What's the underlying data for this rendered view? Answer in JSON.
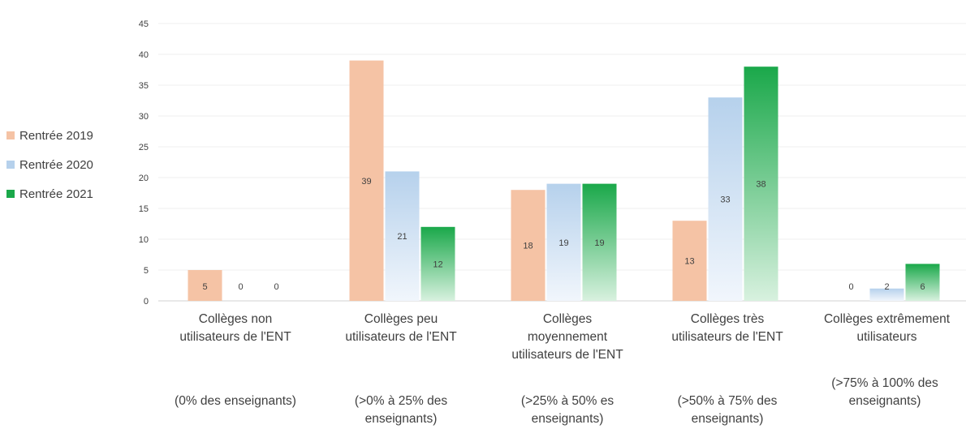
{
  "chart_data": {
    "type": "bar",
    "title": "",
    "xlabel": "",
    "ylabel": "",
    "ylim": [
      0,
      45
    ],
    "yticks": [
      0,
      5,
      10,
      15,
      20,
      25,
      30,
      35,
      40,
      45
    ],
    "grid": true,
    "legend_position": "left",
    "categories": [
      {
        "line1": "Collèges non",
        "line2": "utilisateurs de l'ENT",
        "line3": "",
        "sub1": "(0% des enseignants)",
        "sub2": ""
      },
      {
        "line1": "Collèges peu",
        "line2": "utilisateurs de l'ENT",
        "line3": "",
        "sub1": "(>0% à 25% des",
        "sub2": "enseignants)"
      },
      {
        "line1": "Collèges",
        "line2": "moyennement",
        "line3": "utilisateurs de l'ENT",
        "sub1": "(>25% à 50% es",
        "sub2": "enseignants)"
      },
      {
        "line1": "Collèges très",
        "line2": "utilisateurs de l'ENT",
        "line3": "",
        "sub1": "(>50% à 75% des",
        "sub2": "enseignants)"
      },
      {
        "line1": "Collèges extrêmement",
        "line2": "utilisateurs",
        "line3": "",
        "sub1": "(>75% à 100% des",
        "sub2": "enseignants)"
      }
    ],
    "series": [
      {
        "name": "Rentrée 2019",
        "values": [
          5,
          39,
          18,
          13,
          0
        ],
        "color": "#f5c3a5",
        "fade": "#fbe3d3"
      },
      {
        "name": "Rentrée 2020",
        "values": [
          0,
          21,
          19,
          33,
          2
        ],
        "color": "#b6d1ec",
        "fade": "#f1f6fc"
      },
      {
        "name": "Rentrée 2021",
        "values": [
          0,
          12,
          19,
          38,
          6
        ],
        "color": "#1aa84a",
        "fade": "#d8f1df"
      }
    ]
  }
}
